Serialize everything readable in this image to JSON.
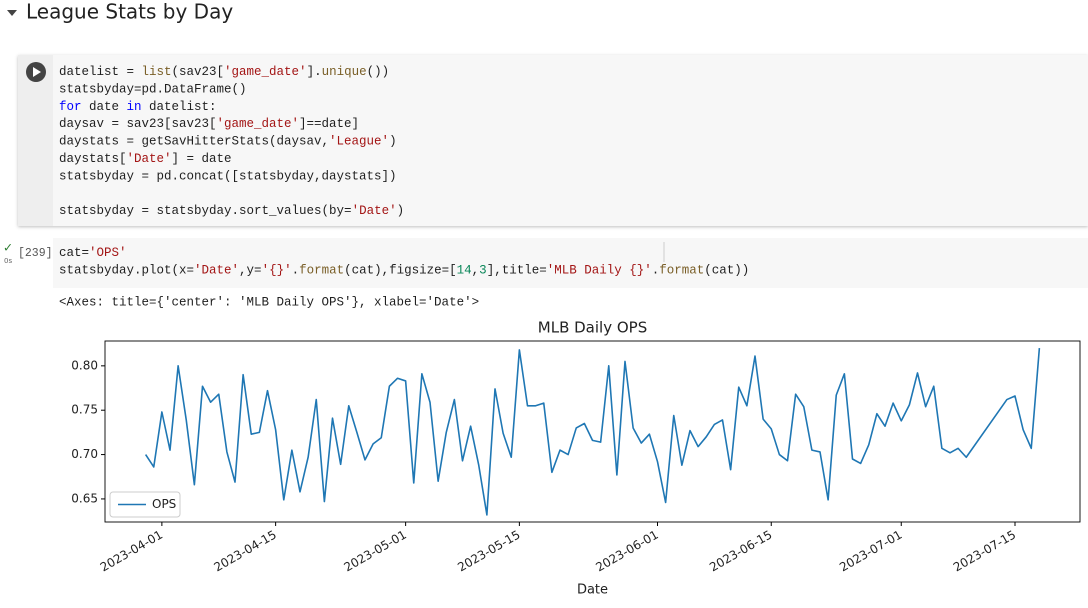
{
  "section": {
    "title": "League Stats by Day"
  },
  "cell1": {
    "code": [
      [
        "datelist = list(sav23['game_date'].unique())",
        "statsbyday=pd.DataFrame()",
        "for date in datelist:",
        "  daysav = sav23[sav23['game_date']==date]",
        "  daystats = getSavHitterStats(daysav,'League')",
        "  daystats['Date'] = date",
        "  statsbyday = pd.concat([statsbyday,daystats])"
      ],
      [
        "statsbyday = statsbyday.sort_values(by='Date')"
      ]
    ]
  },
  "cell2": {
    "status": "✓",
    "time": "0s",
    "count": "[239]",
    "code": [
      "cat='OPS'",
      "statsbyday.plot(x='Date',y='{}'.format(cat),figsize=[14,3],title='MLB Daily {}'.format(cat))"
    ],
    "output": "<Axes: title={'center': 'MLB Daily OPS'}, xlabel='Date'>"
  },
  "chart_data": {
    "type": "line",
    "title": "MLB Daily OPS",
    "xlabel": "Date",
    "legend": "lower left",
    "x": [
      "2023-03-30",
      "2023-03-31",
      "2023-04-01",
      "2023-04-02",
      "2023-04-03",
      "2023-04-04",
      "2023-04-05",
      "2023-04-06",
      "2023-04-07",
      "2023-04-08",
      "2023-04-09",
      "2023-04-10",
      "2023-04-11",
      "2023-04-12",
      "2023-04-13",
      "2023-04-14",
      "2023-04-15",
      "2023-04-16",
      "2023-04-17",
      "2023-04-18",
      "2023-04-19",
      "2023-04-20",
      "2023-04-21",
      "2023-04-22",
      "2023-04-23",
      "2023-04-24",
      "2023-04-25",
      "2023-04-26",
      "2023-04-27",
      "2023-04-28",
      "2023-04-29",
      "2023-04-30",
      "2023-05-01",
      "2023-05-02",
      "2023-05-03",
      "2023-05-04",
      "2023-05-05",
      "2023-05-06",
      "2023-05-07",
      "2023-05-08",
      "2023-05-09",
      "2023-05-10",
      "2023-05-11",
      "2023-05-12",
      "2023-05-13",
      "2023-05-14",
      "2023-05-15",
      "2023-05-16",
      "2023-05-17",
      "2023-05-18",
      "2023-05-19",
      "2023-05-20",
      "2023-05-21",
      "2023-05-22",
      "2023-05-23",
      "2023-05-24",
      "2023-05-25",
      "2023-05-26",
      "2023-05-27",
      "2023-05-28",
      "2023-05-29",
      "2023-05-30",
      "2023-05-31",
      "2023-06-01",
      "2023-06-02",
      "2023-06-03",
      "2023-06-04",
      "2023-06-05",
      "2023-06-06",
      "2023-06-07",
      "2023-06-08",
      "2023-06-09",
      "2023-06-10",
      "2023-06-11",
      "2023-06-12",
      "2023-06-13",
      "2023-06-14",
      "2023-06-15",
      "2023-06-16",
      "2023-06-17",
      "2023-06-18",
      "2023-06-19",
      "2023-06-20",
      "2023-06-21",
      "2023-06-22",
      "2023-06-23",
      "2023-06-24",
      "2023-06-25",
      "2023-06-26",
      "2023-06-27",
      "2023-06-28",
      "2023-06-29",
      "2023-06-30",
      "2023-07-01",
      "2023-07-02",
      "2023-07-03",
      "2023-07-04",
      "2023-07-05",
      "2023-07-06",
      "2023-07-07",
      "2023-07-08",
      "2023-07-09",
      "2023-07-14",
      "2023-07-15",
      "2023-07-16",
      "2023-07-17",
      "2023-07-18"
    ],
    "series": [
      {
        "name": "OPS",
        "color": "#1f77b4",
        "values": [
          0.7,
          0.686,
          0.748,
          0.705,
          0.8,
          0.739,
          0.666,
          0.777,
          0.759,
          0.768,
          0.703,
          0.669,
          0.79,
          0.723,
          0.725,
          0.772,
          0.728,
          0.649,
          0.705,
          0.658,
          0.697,
          0.762,
          0.647,
          0.741,
          0.689,
          0.755,
          0.725,
          0.694,
          0.712,
          0.719,
          0.777,
          0.786,
          0.783,
          0.668,
          0.791,
          0.759,
          0.67,
          0.725,
          0.762,
          0.693,
          0.732,
          0.688,
          0.632,
          0.774,
          0.724,
          0.697,
          0.818,
          0.755,
          0.755,
          0.758,
          0.68,
          0.705,
          0.7,
          0.73,
          0.735,
          0.716,
          0.714,
          0.8,
          0.677,
          0.805,
          0.73,
          0.713,
          0.723,
          0.692,
          0.646,
          0.744,
          0.688,
          0.727,
          0.709,
          0.72,
          0.734,
          0.739,
          0.683,
          0.776,
          0.755,
          0.811,
          0.74,
          0.729,
          0.7,
          0.693,
          0.768,
          0.754,
          0.705,
          0.703,
          0.649,
          0.767,
          0.791,
          0.695,
          0.69,
          0.711,
          0.746,
          0.732,
          0.758,
          0.738,
          0.756,
          0.792,
          0.754,
          0.777,
          0.707,
          0.702,
          0.707,
          0.697,
          0.762,
          0.766,
          0.728,
          0.707,
          0.82
        ]
      }
    ],
    "xlim": [
      "2023-03-25",
      "2023-07-23"
    ],
    "xticks": [
      "2023-04-01",
      "2023-04-15",
      "2023-05-01",
      "2023-05-15",
      "2023-06-01",
      "2023-06-15",
      "2023-07-01",
      "2023-07-15"
    ],
    "ylim": [
      0.624,
      0.828
    ],
    "yticks": [
      0.65,
      {
        "value": 0.7,
        "label": "0.70"
      },
      0.75,
      {
        "value": 0.8,
        "label": "0.80"
      }
    ]
  }
}
